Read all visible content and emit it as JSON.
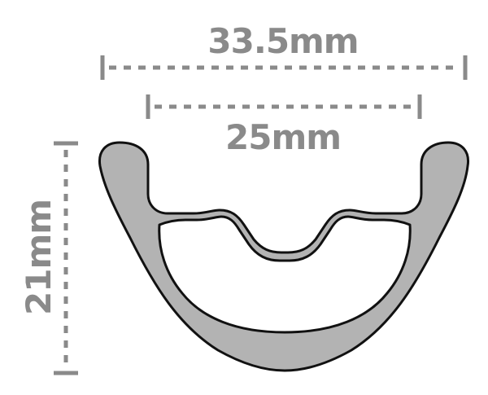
{
  "dimensions": {
    "outer_width": "33.5mm",
    "inner_width": "25mm",
    "height": "21mm"
  },
  "colors": {
    "dimension": "#8a8a8a",
    "rim_fill": "#b3b3b3",
    "outline": "#111111",
    "background": "#ffffff"
  }
}
